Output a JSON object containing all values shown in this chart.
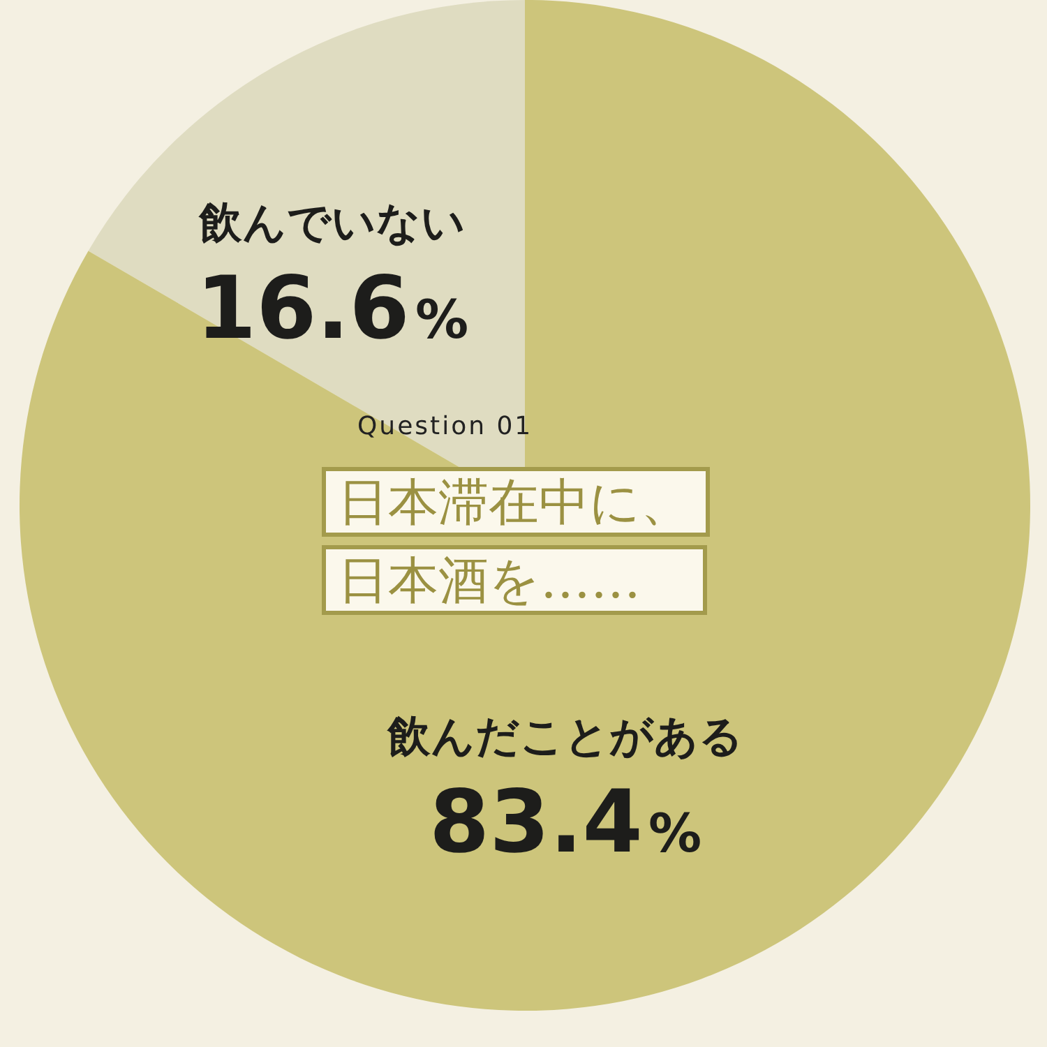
{
  "chart_data": {
    "type": "pie",
    "subtitle": "Question 01",
    "title": "日本滞在中に、日本酒を……",
    "categories": [
      "飲んでいない",
      "飲んだことがある"
    ],
    "values": [
      16.6,
      83.4
    ],
    "colors": [
      "#dfdcc1",
      "#cdc57b"
    ],
    "value_labels": [
      "16.6%",
      "83.4%"
    ]
  }
}
